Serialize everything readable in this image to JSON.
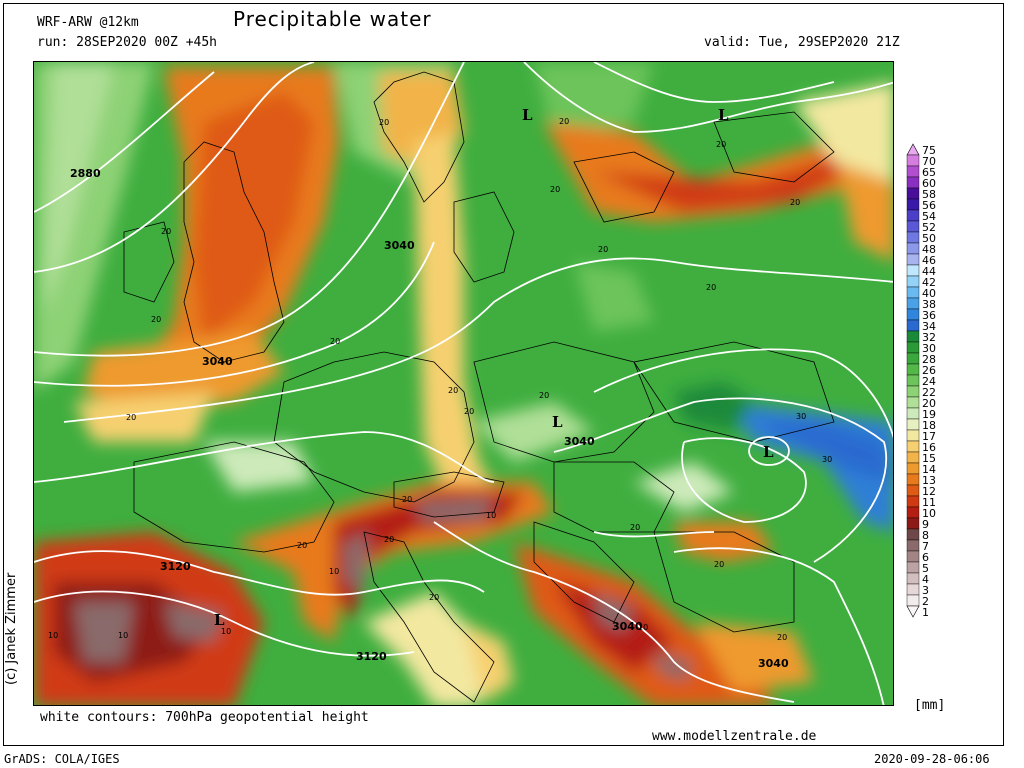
{
  "header": {
    "model": "WRF-ARW @12km",
    "title": "Precipitable water",
    "run": "run: 28SEP2020 00Z +45h",
    "valid": "valid: Tue, 29SEP2020 21Z"
  },
  "footer": {
    "contours_note": "white contours: 700hPa geopotential height",
    "website": "www.modellzentrale.de",
    "software": "GrADS: COLA/IGES",
    "timestamp": "2020-09-28-06:06"
  },
  "copyright": "(c) Janek Zimmer",
  "unit": "[mm]",
  "colors": {
    "land_green": "#3fae3f",
    "dry_orange": "#e8731a",
    "very_dry": "#8a5a5a",
    "moist_blue": "#2f7fd6",
    "contour": "#ffffff",
    "border": "#000000"
  },
  "legend": {
    "levels": [
      "75",
      "70",
      "65",
      "60",
      "58",
      "56",
      "54",
      "52",
      "50",
      "48",
      "46",
      "44",
      "42",
      "40",
      "38",
      "36",
      "34",
      "32",
      "30",
      "28",
      "26",
      "24",
      "22",
      "20",
      "19",
      "18",
      "17",
      "16",
      "15",
      "14",
      "13",
      "12",
      "11",
      "10",
      "9",
      "8",
      "7",
      "6",
      "5",
      "4",
      "3",
      "2",
      "1"
    ],
    "colors": [
      "#e9a8f0",
      "#d67ee0",
      "#b24fd0",
      "#8a2fc0",
      "#4a0f9a",
      "#3a1aa8",
      "#4b3ec8",
      "#5a58d6",
      "#6f78e0",
      "#8c98ea",
      "#a8b4f0",
      "#bfe8ff",
      "#93d3f7",
      "#6abaf1",
      "#4aa1e8",
      "#2f86dc",
      "#2a6ad0",
      "#1a8a3a",
      "#2a9a36",
      "#3aa83c",
      "#52b848",
      "#6cc45a",
      "#8ed276",
      "#b0df98",
      "#cdeaba",
      "#e7f0c0",
      "#f3e8a0",
      "#f6d070",
      "#f2b44a",
      "#ee9a2e",
      "#e87a1c",
      "#df5a14",
      "#d03a12",
      "#b41e12",
      "#8e1a18",
      "#6e4848",
      "#8a6a6a",
      "#a38484",
      "#bca2a2",
      "#d2bebe",
      "#e6d8d8",
      "#f2ecec",
      "#faf6f6"
    ]
  },
  "map_labels": {
    "contour_values": [
      "2880",
      "3040",
      "3040",
      "3040",
      "3040",
      "3040",
      "3120",
      "3120"
    ],
    "small_values": [
      "20",
      "20",
      "20",
      "20",
      "20",
      "20",
      "20",
      "20",
      "20",
      "20",
      "20",
      "20",
      "20",
      "20",
      "20",
      "20",
      "20",
      "20",
      "20",
      "20",
      "20",
      "10",
      "10",
      "10",
      "10",
      "10",
      "10",
      "30",
      "30"
    ],
    "lows": [
      "L",
      "L",
      "L",
      "L",
      "L"
    ]
  }
}
